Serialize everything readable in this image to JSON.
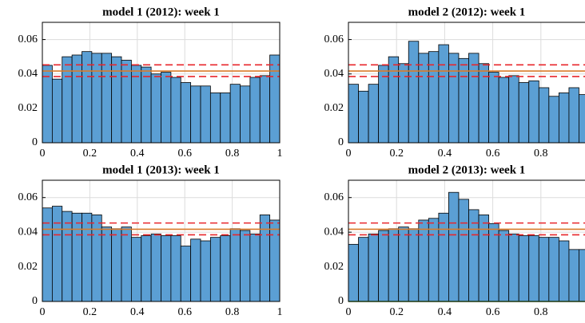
{
  "chart_data": [
    {
      "type": "histogram",
      "title": "model 1 (2012): week 1",
      "bins": [
        0,
        0.0417,
        0.0833,
        0.125,
        0.1667,
        0.2083,
        0.25,
        0.2917,
        0.3333,
        0.375,
        0.4167,
        0.4583,
        0.5,
        0.5417,
        0.5833,
        0.625,
        0.6667,
        0.7083,
        0.75,
        0.7917,
        0.8333,
        0.875,
        0.9167,
        0.9583,
        1
      ],
      "values": [
        0.045,
        0.037,
        0.05,
        0.051,
        0.053,
        0.052,
        0.052,
        0.05,
        0.048,
        0.045,
        0.044,
        0.04,
        0.041,
        0.038,
        0.035,
        0.033,
        0.033,
        0.029,
        0.029,
        0.034,
        0.033,
        0.038,
        0.039,
        0.051
      ],
      "color": "#5b9fd4",
      "xlim": [
        0,
        1
      ],
      "xticks": [
        0,
        0.2,
        0.4,
        0.6,
        0.8,
        1
      ],
      "ylim": [
        0,
        0.07
      ],
      "yticks": [
        0,
        0.02,
        0.04,
        0.06
      ],
      "grid": true,
      "hlines": [
        {
          "value": 0.0453,
          "color": "#e8262b",
          "style": "dashed"
        },
        {
          "value": 0.0417,
          "color": "#d97b2b",
          "style": "solid"
        },
        {
          "value": 0.0385,
          "color": "#e8262b",
          "style": "dashed"
        }
      ]
    },
    {
      "type": "histogram",
      "title": "model 2 (2012): week 1",
      "bins": [
        0,
        0.0417,
        0.0833,
        0.125,
        0.1667,
        0.2083,
        0.25,
        0.2917,
        0.3333,
        0.375,
        0.4167,
        0.4583,
        0.5,
        0.5417,
        0.5833,
        0.625,
        0.6667,
        0.7083,
        0.75,
        0.7917,
        0.8333,
        0.875,
        0.9167,
        0.9583,
        1
      ],
      "values": [
        0.034,
        0.03,
        0.034,
        0.045,
        0.05,
        0.046,
        0.059,
        0.052,
        0.053,
        0.057,
        0.052,
        0.049,
        0.052,
        0.046,
        0.041,
        0.038,
        0.039,
        0.035,
        0.036,
        0.032,
        0.027,
        0.029,
        0.032,
        0.028
      ],
      "color": "#5b9fd4",
      "xlim": [
        0,
        1
      ],
      "xticks": [
        0,
        0.2,
        0.4,
        0.6,
        0.8
      ],
      "ylim": [
        0,
        0.07
      ],
      "yticks": [
        0,
        0.02,
        0.04,
        0.06
      ],
      "grid": true,
      "hlines": [
        {
          "value": 0.0453,
          "color": "#e8262b",
          "style": "dashed"
        },
        {
          "value": 0.0417,
          "color": "#d97b2b",
          "style": "solid"
        },
        {
          "value": 0.0385,
          "color": "#e8262b",
          "style": "dashed"
        }
      ]
    },
    {
      "type": "histogram",
      "title": "model 1 (2013): week 1",
      "bins": [
        0,
        0.0417,
        0.0833,
        0.125,
        0.1667,
        0.2083,
        0.25,
        0.2917,
        0.3333,
        0.375,
        0.4167,
        0.4583,
        0.5,
        0.5417,
        0.5833,
        0.625,
        0.6667,
        0.7083,
        0.75,
        0.7917,
        0.8333,
        0.875,
        0.9167,
        0.9583,
        1
      ],
      "values": [
        0.054,
        0.055,
        0.052,
        0.051,
        0.051,
        0.05,
        0.043,
        0.042,
        0.043,
        0.037,
        0.038,
        0.039,
        0.038,
        0.038,
        0.032,
        0.036,
        0.035,
        0.037,
        0.038,
        0.042,
        0.041,
        0.039,
        0.05,
        0.047
      ],
      "color": "#5b9fd4",
      "xlim": [
        0,
        1
      ],
      "xticks": [
        0,
        0.2,
        0.4,
        0.6,
        0.8,
        1
      ],
      "ylim": [
        0,
        0.07
      ],
      "yticks": [
        0,
        0.02,
        0.04,
        0.06
      ],
      "grid": true,
      "hlines": [
        {
          "value": 0.0453,
          "color": "#e8262b",
          "style": "dashed"
        },
        {
          "value": 0.0417,
          "color": "#d97b2b",
          "style": "solid"
        },
        {
          "value": 0.0385,
          "color": "#e8262b",
          "style": "dashed"
        }
      ]
    },
    {
      "type": "histogram",
      "title": "model 2 (2013): week 1",
      "bins": [
        0,
        0.0417,
        0.0833,
        0.125,
        0.1667,
        0.2083,
        0.25,
        0.2917,
        0.3333,
        0.375,
        0.4167,
        0.4583,
        0.5,
        0.5417,
        0.5833,
        0.625,
        0.6667,
        0.7083,
        0.75,
        0.7917,
        0.8333,
        0.875,
        0.9167,
        0.9583,
        1
      ],
      "values": [
        0.033,
        0.037,
        0.039,
        0.041,
        0.042,
        0.043,
        0.042,
        0.047,
        0.048,
        0.051,
        0.063,
        0.059,
        0.053,
        0.05,
        0.045,
        0.041,
        0.039,
        0.038,
        0.038,
        0.037,
        0.037,
        0.035,
        0.03,
        0.03
      ],
      "color": "#5b9fd4",
      "xlim": [
        0,
        1
      ],
      "xticks": [
        0,
        0.2,
        0.4,
        0.6,
        0.8
      ],
      "ylim": [
        0,
        0.07
      ],
      "yticks": [
        0,
        0.02,
        0.04,
        0.06
      ],
      "grid": true,
      "hlines": [
        {
          "value": 0.0453,
          "color": "#e8262b",
          "style": "dashed"
        },
        {
          "value": 0.0417,
          "color": "#d97b2b",
          "style": "solid"
        },
        {
          "value": 0.0385,
          "color": "#e8262b",
          "style": "dashed"
        },
        {
          "value": 0,
          "color": "#5aa832",
          "style": "solid"
        }
      ]
    }
  ]
}
